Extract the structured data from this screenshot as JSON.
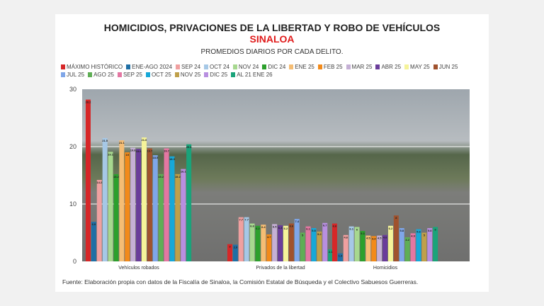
{
  "chart_data": {
    "type": "bar",
    "title": "HOMICIDIOS, PRIVACIONES DE LA LIBERTAD Y ROBO DE VEHÍCULOS",
    "subtitle": "SINALOA",
    "subtitle2": "PROMEDIOS DIARIOS POR CADA DELITO.",
    "categories": [
      "Vehículos robados",
      "Privados de la libertad",
      "Homicidios"
    ],
    "ylim": [
      0,
      30
    ],
    "yticks": [
      "0",
      "10",
      "20",
      "30"
    ],
    "grid": true,
    "legend_position": "top",
    "series": [
      {
        "name": "MÁXIMO HISTÓRICO",
        "color": "#d62728",
        "values": [
          28.2,
          3.0,
          6.6
        ]
      },
      {
        "name": "ENE-AGO 2024",
        "color": "#1f6fa5",
        "values": [
          6.9,
          2.9,
          1.4
        ]
      },
      {
        "name": "SEP 24",
        "color": "#f0a0a0",
        "values": [
          14.2,
          7.7,
          4.6
        ]
      },
      {
        "name": "OCT 24",
        "color": "#a6c8e6",
        "values": [
          21.5,
          7.7,
          6.1
        ]
      },
      {
        "name": "NOV 24",
        "color": "#a7d88f",
        "values": [
          19.1,
          6.6,
          6.0
        ]
      },
      {
        "name": "DIC 24",
        "color": "#2ca02c",
        "values": [
          15.2,
          6.2,
          5.3
        ]
      },
      {
        "name": "ENE 25",
        "color": "#f5bd74",
        "values": [
          21.1,
          6.4,
          4.5
        ]
      },
      {
        "name": "FEB 25",
        "color": "#f28a1a",
        "values": [
          19.0,
          4.7,
          4.4
        ]
      },
      {
        "name": "MAR 25",
        "color": "#c5b0d5",
        "values": [
          19.8,
          6.5,
          4.5
        ]
      },
      {
        "name": "ABR 25",
        "color": "#6a3d9a",
        "values": [
          19.6,
          6.3,
          4.6
        ]
      },
      {
        "name": "MAY 25",
        "color": "#f5f39a",
        "values": [
          21.6,
          6.2,
          6.2
        ]
      },
      {
        "name": "JUN 25",
        "color": "#a0522d",
        "values": [
          19.7,
          6.6,
          8.0
        ]
      },
      {
        "name": "JUL 25",
        "color": "#7fa6e8",
        "values": [
          18.5,
          7.4,
          5.8
        ]
      },
      {
        "name": "AGO 25",
        "color": "#5fae55",
        "values": [
          15.2,
          5.0,
          4.2
        ]
      },
      {
        "name": "SEP 25",
        "color": "#e377a2",
        "values": [
          19.7,
          6.1,
          4.9
        ]
      },
      {
        "name": "OCT 25",
        "color": "#17a8d8",
        "values": [
          18.3,
          5.8,
          5.6
        ]
      },
      {
        "name": "NOV 25",
        "color": "#bfa04a",
        "values": [
          15.2,
          5.2,
          5.0
        ]
      },
      {
        "name": "DIC 25",
        "color": "#b88fe0",
        "values": [
          16.1,
          6.7,
          5.8
        ]
      },
      {
        "name": "AL 21 ENE 26",
        "color": "#1aa37a",
        "values": [
          20.4,
          2.1,
          6.0
        ]
      }
    ]
  },
  "footer": "Fuente: Elaboración propia con datos de la Fiscalía de Sinaloa, la Comisión Estatal de Búsqueda y el Colectivo Sabuesos Guerreras."
}
